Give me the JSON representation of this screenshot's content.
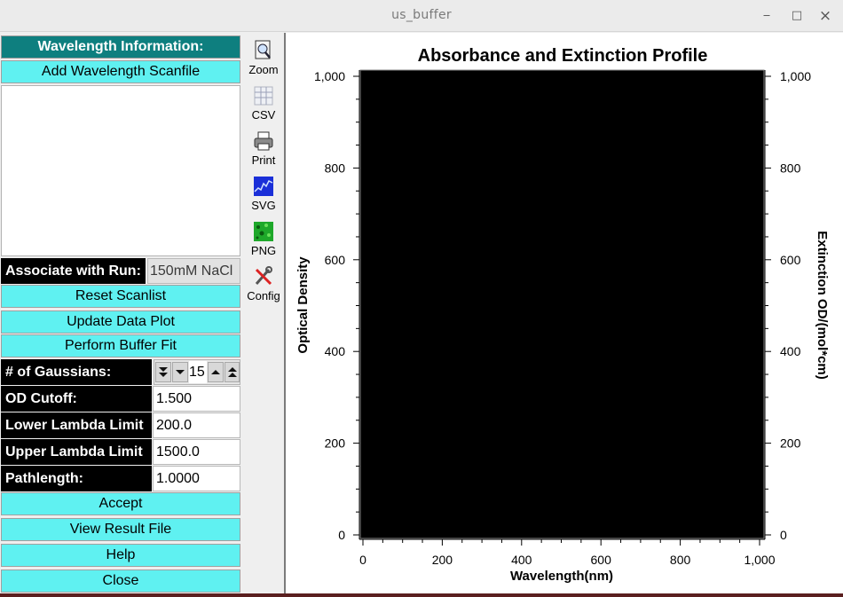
{
  "window": {
    "title": "us_buffer",
    "minimize": "‒",
    "maximize": "□",
    "close": "×"
  },
  "left": {
    "header": "Wavelength Information:",
    "add_scanfile": "Add Wavelength Scanfile",
    "associate_label": "Associate with Run:",
    "associate_value": "150mM NaCl",
    "reset_scanlist": "Reset Scanlist",
    "update_plot": "Update Data Plot",
    "perform_fit": "Perform Buffer Fit",
    "gaussians_label": "# of Gaussians:",
    "gaussians_value": "15",
    "od_cutoff_label": "OD Cutoff:",
    "od_cutoff_value": "1.500",
    "lower_label": "Lower Lambda Limit",
    "lower_value": "200.0",
    "upper_label": "Upper Lambda Limit",
    "upper_value": "1500.0",
    "pathlength_label": "Pathlength:",
    "pathlength_value": "1.0000",
    "accept": "Accept",
    "view_result": "View Result File",
    "help": "Help",
    "close": "Close"
  },
  "toolbar": [
    {
      "label": "Zoom",
      "icon": "zoom-icon"
    },
    {
      "label": "CSV",
      "icon": "csv-icon"
    },
    {
      "label": "Print",
      "icon": "print-icon"
    },
    {
      "label": "SVG",
      "icon": "svg-icon"
    },
    {
      "label": "PNG",
      "icon": "png-icon"
    },
    {
      "label": "Config",
      "icon": "config-icon"
    }
  ],
  "chart_data": {
    "type": "line",
    "title": "Absorbance and Extinction Profile",
    "xlabel": "Wavelength(nm)",
    "ylabel": "Optical Density",
    "y2label": "Extinction OD/(mol*cm)",
    "xlim": [
      0,
      1000
    ],
    "ylim": [
      0,
      1000
    ],
    "y2lim": [
      0,
      1000
    ],
    "xticks": [
      "0",
      "200",
      "400",
      "600",
      "800",
      "1,000"
    ],
    "yticks": [
      "0",
      "200",
      "400",
      "600",
      "800",
      "1,000"
    ],
    "y2ticks": [
      "0",
      "200",
      "400",
      "600",
      "800",
      "1,000"
    ],
    "canvas_color": "#000000",
    "series": []
  }
}
